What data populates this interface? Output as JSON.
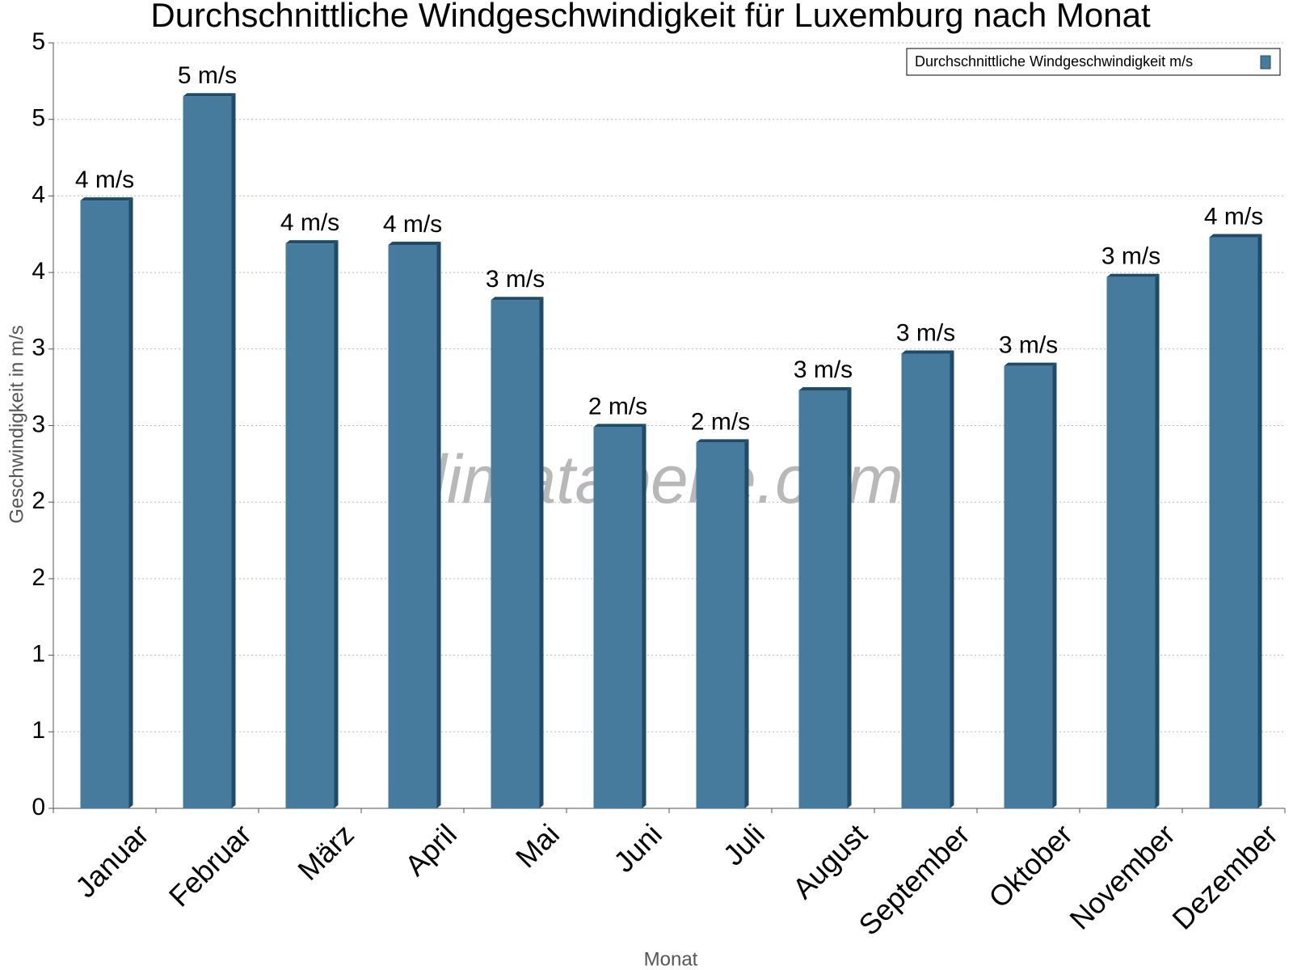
{
  "chart_data": {
    "type": "bar",
    "title": "Durchschnittliche Windgeschwindigkeit für Luxemburg nach Monat",
    "x_label": "Monat",
    "y_label": "Geschwindigkeit in m/s",
    "watermark": "klimatabelle.com",
    "categories": [
      "Januar",
      "Februar",
      "März",
      "April",
      "Mai",
      "Juni",
      "Juli",
      "August",
      "September",
      "Oktober",
      "November",
      "Dezember"
    ],
    "series": [
      {
        "name": "Durchschnittliche Windgeschwindigkeit m/s",
        "color": "#467b9e",
        "values": [
          3.97,
          4.65,
          3.69,
          3.68,
          3.32,
          2.49,
          2.39,
          2.73,
          2.97,
          2.89,
          3.47,
          3.73
        ],
        "value_labels": [
          "4 m/s",
          "5 m/s",
          "4 m/s",
          "4 m/s",
          "3 m/s",
          "2 m/s",
          "2 m/s",
          "3 m/s",
          "3 m/s",
          "3 m/s",
          "3 m/s",
          "4 m/s"
        ]
      }
    ],
    "ylim": [
      0,
      5
    ],
    "yticks": [
      0,
      {
        "value": 0.5,
        "label": "1"
      },
      1,
      {
        "value": 1.5,
        "label": "2"
      },
      2,
      {
        "value": 2.5,
        "label": "3"
      },
      3,
      {
        "value": 3.5,
        "label": "4"
      },
      4,
      {
        "value": 4.5,
        "label": "5"
      },
      5
    ],
    "grid": true,
    "legend": "top-right"
  }
}
